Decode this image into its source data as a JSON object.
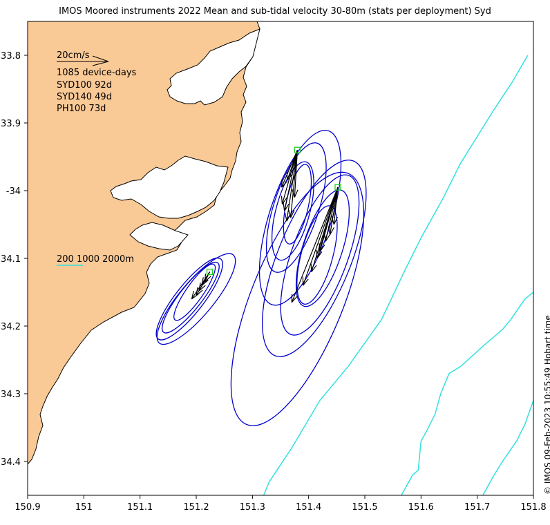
{
  "title": "IMOS Moored instruments 2022 Mean and sub-tidal velocity 30-80m (stats per deployment) Syd",
  "credit": "© IMOS 09-Feb-2023 10:55:49 Hobart time",
  "legend": {
    "scale_label": "20cm/s",
    "device_days": "1085 device-days",
    "deployments": [
      "SYD100 92d",
      "SYD140 49d",
      "PH100 73d"
    ],
    "isobaths": "200 1000 2000m"
  },
  "colors": {
    "land": "#f9c996",
    "ellipse": "#0000cc",
    "isobath": "#33e0e0",
    "arrow": "#000000",
    "mooring": "#22cc22"
  },
  "chart_data": {
    "type": "map",
    "xlabel": "",
    "ylabel": "",
    "xlim": [
      150.9,
      151.8
    ],
    "ylim": [
      -34.45,
      -33.75
    ],
    "x_ticks": [
      "150.9",
      "151",
      "151.1",
      "151.2",
      "151.3",
      "151.4",
      "151.5",
      "151.6",
      "151.7",
      "151.8"
    ],
    "y_ticks": [
      {
        "lat": -33.8,
        "label": "33.8"
      },
      {
        "lat": -33.9,
        "label": "33.9"
      },
      {
        "lat": -34.0,
        "label": "-34"
      },
      {
        "lat": -34.1,
        "label": "34.1"
      },
      {
        "lat": -34.2,
        "label": "34.2"
      },
      {
        "lat": -34.3,
        "label": "34.3"
      },
      {
        "lat": -34.4,
        "label": "34.4"
      }
    ],
    "moorings": [
      {
        "name": "SYD100",
        "lon": 151.38,
        "lat": -33.94,
        "ellipses": [
          {
            "lon": 151.385,
            "lat": -34.04,
            "rx": 0.055,
            "ry": 0.135,
            "angle": 18
          },
          {
            "lon": 151.378,
            "lat": -34.025,
            "rx": 0.04,
            "ry": 0.1,
            "angle": 18
          },
          {
            "lon": 151.372,
            "lat": -34.03,
            "rx": 0.03,
            "ry": 0.075,
            "angle": 15
          },
          {
            "lon": 151.38,
            "lat": -34.02,
            "rx": 0.02,
            "ry": 0.06,
            "angle": 12
          }
        ],
        "arrows": [
          {
            "lon": 151.361,
            "lat": -34.045
          },
          {
            "lon": 151.353,
            "lat": -34.02
          },
          {
            "lon": 151.352,
            "lat": -33.995
          },
          {
            "lon": 151.368,
            "lat": -34.04
          },
          {
            "lon": 151.357,
            "lat": -34.03
          },
          {
            "lon": 151.375,
            "lat": -34.01
          },
          {
            "lon": 151.362,
            "lat": -33.985
          }
        ]
      },
      {
        "name": "SYD140",
        "lon": 151.452,
        "lat": -33.995,
        "ellipses": [
          {
            "lon": 151.38,
            "lat": -34.16,
            "rx": 0.082,
            "ry": 0.2,
            "angle": 22
          },
          {
            "lon": 151.41,
            "lat": -34.1,
            "rx": 0.065,
            "ry": 0.155,
            "angle": 22
          },
          {
            "lon": 151.42,
            "lat": -34.095,
            "rx": 0.05,
            "ry": 0.125,
            "angle": 20
          },
          {
            "lon": 151.415,
            "lat": -34.095,
            "rx": 0.028,
            "ry": 0.075,
            "angle": 15
          },
          {
            "lon": 151.425,
            "lat": -34.085,
            "rx": 0.035,
            "ry": 0.09,
            "angle": 18
          }
        ],
        "arrows": [
          {
            "lon": 151.37,
            "lat": -34.165
          },
          {
            "lon": 151.39,
            "lat": -34.14
          },
          {
            "lon": 151.405,
            "lat": -34.12
          },
          {
            "lon": 151.415,
            "lat": -34.1
          },
          {
            "lon": 151.42,
            "lat": -34.09
          },
          {
            "lon": 151.43,
            "lat": -34.075
          },
          {
            "lon": 151.438,
            "lat": -34.065
          },
          {
            "lon": 151.445,
            "lat": -34.05
          }
        ]
      },
      {
        "name": "PH100",
        "lon": 151.224,
        "lat": -34.12,
        "ellipses": [
          {
            "lon": 151.2,
            "lat": -34.16,
            "rx": 0.03,
            "ry": 0.085,
            "angle": 40
          },
          {
            "lon": 151.188,
            "lat": -34.16,
            "rx": 0.025,
            "ry": 0.075,
            "angle": 38
          },
          {
            "lon": 151.19,
            "lat": -34.158,
            "rx": 0.02,
            "ry": 0.065,
            "angle": 38
          },
          {
            "lon": 151.197,
            "lat": -34.15,
            "rx": 0.015,
            "ry": 0.05,
            "angle": 35
          }
        ],
        "arrows": [
          {
            "lon": 151.192,
            "lat": -34.16
          },
          {
            "lon": 151.2,
            "lat": -34.155
          },
          {
            "lon": 151.205,
            "lat": -34.148
          },
          {
            "lon": 151.21,
            "lat": -34.14
          },
          {
            "lon": 151.215,
            "lat": -34.135
          }
        ]
      }
    ],
    "isobaths": [
      {
        "depth": 200,
        "points": [
          [
            151.32,
            -34.45
          ],
          [
            151.33,
            -34.43
          ],
          [
            151.37,
            -34.38
          ],
          [
            151.42,
            -34.31
          ],
          [
            151.47,
            -34.26
          ],
          [
            151.53,
            -34.19
          ],
          [
            151.57,
            -34.12
          ],
          [
            151.6,
            -34.07
          ],
          [
            151.64,
            -34.01
          ],
          [
            151.67,
            -33.96
          ],
          [
            151.7,
            -33.92
          ],
          [
            151.73,
            -33.88
          ],
          [
            151.762,
            -33.84
          ],
          [
            151.79,
            -33.8
          ]
        ]
      },
      {
        "depth": 1000,
        "points": [
          [
            151.565,
            -34.45
          ],
          [
            151.585,
            -34.42
          ],
          [
            151.595,
            -34.413
          ],
          [
            151.6,
            -34.37
          ],
          [
            151.61,
            -34.355
          ],
          [
            151.625,
            -34.33
          ],
          [
            151.635,
            -34.3
          ],
          [
            151.65,
            -34.27
          ],
          [
            151.67,
            -34.26
          ],
          [
            151.71,
            -34.23
          ],
          [
            151.745,
            -34.205
          ],
          [
            151.76,
            -34.19
          ],
          [
            151.785,
            -34.16
          ],
          [
            151.8,
            -34.15
          ]
        ]
      },
      {
        "depth": 2000,
        "points": [
          [
            151.71,
            -34.45
          ],
          [
            151.73,
            -34.42
          ],
          [
            151.745,
            -34.4
          ],
          [
            151.77,
            -34.37
          ],
          [
            151.785,
            -34.345
          ],
          [
            151.8,
            -34.31
          ]
        ]
      }
    ]
  }
}
